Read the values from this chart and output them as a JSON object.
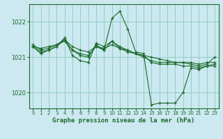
{
  "background_color": "#cce8f0",
  "grid_color": "#88ccbb",
  "line_color": "#1a6b2a",
  "xlabel": "Graphe pression niveau de la mer (hPa)",
  "xlabel_fontsize": 6.5,
  "yticks": [
    1020,
    1021,
    1022
  ],
  "xticks": [
    0,
    1,
    2,
    3,
    4,
    5,
    6,
    7,
    8,
    9,
    10,
    11,
    12,
    13,
    14,
    15,
    16,
    17,
    18,
    19,
    20,
    21,
    22,
    23
  ],
  "xlim": [
    -0.5,
    23.5
  ],
  "ylim": [
    1019.55,
    1022.5
  ],
  "lines": [
    {
      "x": [
        0,
        1,
        2,
        3,
        4,
        5,
        6,
        7,
        8,
        9,
        10,
        11,
        12,
        13,
        14,
        15,
        16,
        17,
        18,
        19,
        20,
        21,
        22,
        23
      ],
      "y": [
        1021.3,
        1021.1,
        1021.2,
        1021.3,
        1021.5,
        1021.3,
        1021.2,
        1021.15,
        1021.3,
        1021.2,
        1022.1,
        1022.3,
        1021.8,
        1021.15,
        1021.1,
        1019.65,
        1019.7,
        1019.7,
        1019.7,
        1020.0,
        1020.7,
        1020.65,
        1020.75,
        1020.8
      ]
    },
    {
      "x": [
        0,
        1,
        2,
        3,
        4,
        5,
        6,
        7,
        8,
        9,
        10,
        11,
        12,
        13,
        14,
        15,
        16,
        17,
        18,
        19,
        20,
        21,
        22,
        23
      ],
      "y": [
        1021.3,
        1021.25,
        1021.3,
        1021.35,
        1021.45,
        1021.2,
        1021.1,
        1021.05,
        1021.3,
        1021.25,
        1021.35,
        1021.25,
        1021.2,
        1021.1,
        1021.05,
        1021.0,
        1020.95,
        1020.9,
        1020.85,
        1020.85,
        1020.85,
        1020.8,
        1020.85,
        1020.85
      ]
    },
    {
      "x": [
        0,
        1,
        2,
        3,
        4,
        5,
        6,
        7,
        8,
        9,
        10,
        11,
        12,
        13,
        14,
        15,
        16,
        17,
        18,
        19,
        20,
        21,
        22,
        23
      ],
      "y": [
        1021.35,
        1021.2,
        1021.25,
        1021.35,
        1021.5,
        1021.2,
        1021.05,
        1021.0,
        1021.35,
        1021.2,
        1021.45,
        1021.3,
        1021.2,
        1021.1,
        1021.0,
        1020.9,
        1020.85,
        1020.85,
        1020.85,
        1020.85,
        1020.8,
        1020.75,
        1020.8,
        1021.0
      ]
    },
    {
      "x": [
        0,
        1,
        2,
        3,
        4,
        5,
        6,
        7,
        8,
        9,
        10,
        11,
        12,
        13,
        14,
        15,
        16,
        17,
        18,
        19,
        20,
        21,
        22,
        23
      ],
      "y": [
        1021.3,
        1021.15,
        1021.2,
        1021.3,
        1021.55,
        1021.05,
        1020.9,
        1020.85,
        1021.4,
        1021.3,
        1021.45,
        1021.25,
        1021.15,
        1021.1,
        1021.05,
        1020.85,
        1020.8,
        1020.8,
        1020.8,
        1020.75,
        1020.75,
        1020.7,
        1020.75,
        1020.75
      ]
    }
  ]
}
